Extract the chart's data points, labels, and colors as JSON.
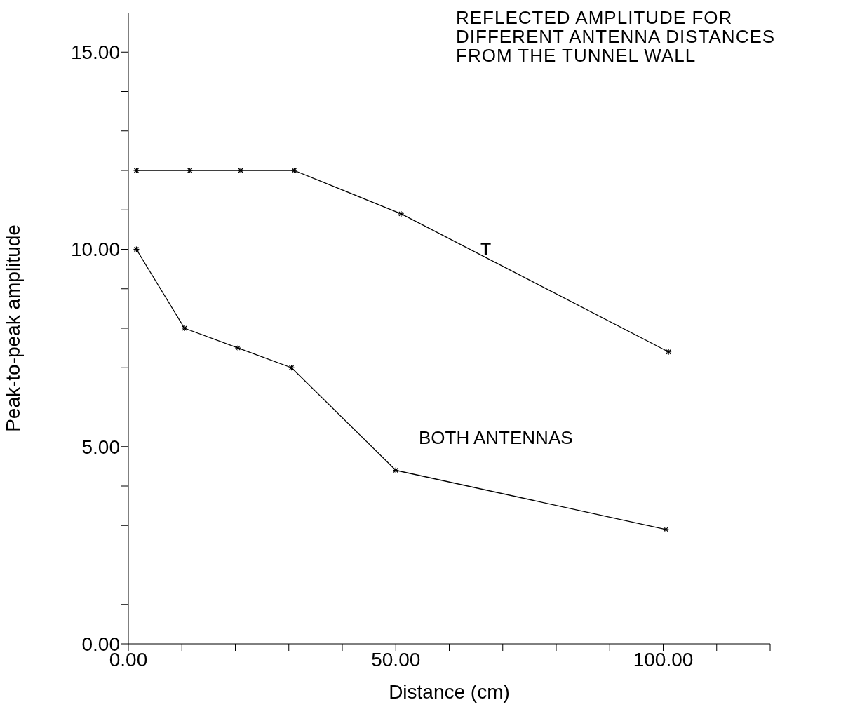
{
  "chart_data": {
    "type": "line",
    "title": "REFLECTED AMPLITUDE FOR\nDIFFERENT ANTENNA DISTANCES\nFROM THE TUNNEL WALL",
    "xlabel": "Distance (cm)",
    "ylabel": "Peak-to-peak amplitude",
    "xlim": [
      0,
      120
    ],
    "xticks": [
      {
        "value": 0,
        "label": "0.00"
      },
      {
        "value": 10,
        "label": null
      },
      {
        "value": 20,
        "label": null
      },
      {
        "value": 30,
        "label": null
      },
      {
        "value": 40,
        "label": null
      },
      {
        "value": 50,
        "label": "50.00"
      },
      {
        "value": 60,
        "label": null
      },
      {
        "value": 70,
        "label": null
      },
      {
        "value": 80,
        "label": null
      },
      {
        "value": 90,
        "label": null
      },
      {
        "value": 100,
        "label": "100.00"
      },
      {
        "value": 110,
        "label": null
      },
      {
        "value": 120,
        "label": null
      }
    ],
    "ylim": [
      0,
      16
    ],
    "yticks": [
      {
        "value": 0,
        "label": "0.00"
      },
      {
        "value": 1,
        "label": null
      },
      {
        "value": 2,
        "label": null
      },
      {
        "value": 3,
        "label": null
      },
      {
        "value": 4,
        "label": null
      },
      {
        "value": 5,
        "label": "5.00"
      },
      {
        "value": 6,
        "label": null
      },
      {
        "value": 7,
        "label": null
      },
      {
        "value": 8,
        "label": null
      },
      {
        "value": 9,
        "label": null
      },
      {
        "value": 10,
        "label": "10.00"
      },
      {
        "value": 11,
        "label": null
      },
      {
        "value": 12,
        "label": null
      },
      {
        "value": 13,
        "label": null
      },
      {
        "value": 14,
        "label": null
      },
      {
        "value": 15,
        "label": "15.00"
      }
    ],
    "marker": "cross",
    "line_style": "solid",
    "series": [
      {
        "name": "T",
        "color": "#000000",
        "x": [
          1.5,
          11.5,
          21,
          31,
          51,
          101
        ],
        "values": [
          12.0,
          12.0,
          12.0,
          12.0,
          10.9,
          7.4
        ]
      },
      {
        "name": "BOTH ANTENNAS",
        "color": "#000000",
        "x": [
          1.5,
          10.5,
          20.5,
          30.5,
          50,
          100.5
        ],
        "values": [
          10.0,
          8.0,
          7.5,
          7.0,
          4.4,
          2.9
        ]
      }
    ]
  }
}
